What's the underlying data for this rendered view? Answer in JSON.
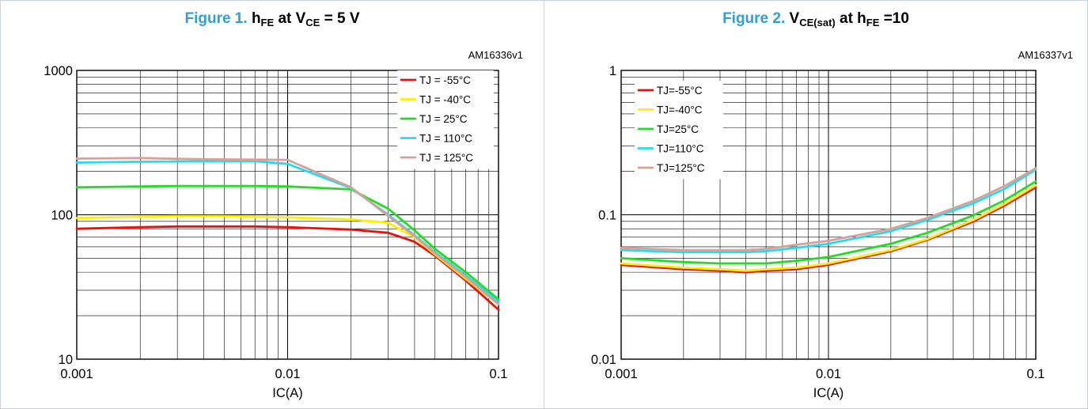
{
  "charts": [
    {
      "id": "fig1",
      "figure_label": "Figure 1.",
      "title_parts": [
        {
          "t": "h"
        },
        {
          "t": "FE",
          "sub": true
        },
        {
          "t": " at V"
        },
        {
          "t": "CE",
          "sub": true
        },
        {
          "t": " = 5 V"
        }
      ],
      "code": "AM16336v1"
    },
    {
      "id": "fig2",
      "figure_label": "Figure 2.",
      "title_parts": [
        {
          "t": "V"
        },
        {
          "t": "CE(sat)",
          "sub": true
        },
        {
          "t": " at h"
        },
        {
          "t": "FE",
          "sub": true
        },
        {
          "t": " =10"
        }
      ],
      "code": "AM16337v1"
    }
  ],
  "chart_data": [
    {
      "type": "line",
      "title": "Figure 1. hFE at VCE = 5 V",
      "xlabel": "IC(A)",
      "ylabel": "",
      "xscale": "log",
      "yscale": "log",
      "xlim": [
        0.001,
        0.1
      ],
      "ylim": [
        10,
        1000
      ],
      "x_ticks": [
        "0.001",
        "0.01",
        "0.1"
      ],
      "y_ticks": [
        "10",
        "100",
        "1000"
      ],
      "grid": true,
      "legend_position": "top-right",
      "series": [
        {
          "name": "TJ = -55°C",
          "color": "#e8110f",
          "x": [
            0.001,
            0.002,
            0.003,
            0.005,
            0.007,
            0.01,
            0.02,
            0.03,
            0.04,
            0.05,
            0.07,
            0.1
          ],
          "y": [
            80,
            82,
            83,
            83,
            83,
            82,
            79,
            75,
            65,
            52,
            35,
            22
          ]
        },
        {
          "name": "TJ = -40°C",
          "color": "#ffee00",
          "x": [
            0.001,
            0.002,
            0.003,
            0.005,
            0.007,
            0.01,
            0.02,
            0.03,
            0.04,
            0.05,
            0.07,
            0.1
          ],
          "y": [
            95,
            97,
            98,
            98,
            97,
            96,
            93,
            88,
            70,
            53,
            36,
            24
          ]
        },
        {
          "name": "TJ = 25°C",
          "color": "#22dd22",
          "x": [
            0.001,
            0.002,
            0.003,
            0.005,
            0.007,
            0.01,
            0.02,
            0.03,
            0.04,
            0.05,
            0.07,
            0.1
          ],
          "y": [
            155,
            157,
            158,
            158,
            158,
            157,
            150,
            110,
            78,
            58,
            40,
            26
          ]
        },
        {
          "name": "TJ = 110°C",
          "color": "#22ddee",
          "x": [
            0.001,
            0.002,
            0.003,
            0.005,
            0.007,
            0.01,
            0.02,
            0.03,
            0.04,
            0.05,
            0.07,
            0.1
          ],
          "y": [
            230,
            233,
            234,
            235,
            235,
            225,
            153,
            100,
            72,
            55,
            38,
            25
          ]
        },
        {
          "name": "TJ = 125°C",
          "color": "#d9a09a",
          "x": [
            0.001,
            0.002,
            0.003,
            0.005,
            0.007,
            0.01,
            0.02,
            0.03,
            0.04,
            0.05,
            0.07,
            0.1
          ],
          "y": [
            245,
            247,
            244,
            242,
            241,
            240,
            155,
            98,
            71,
            54,
            37,
            24
          ]
        }
      ]
    },
    {
      "type": "line",
      "title": "Figure 2. VCE(sat) at hFE =10",
      "xlabel": "IC(A)",
      "ylabel": "",
      "xscale": "log",
      "yscale": "log",
      "xlim": [
        0.001,
        0.1
      ],
      "ylim": [
        0.01,
        1
      ],
      "x_ticks": [
        "0.001",
        "0.01",
        "0.1"
      ],
      "y_ticks": [
        "0.01",
        "0.1",
        "1"
      ],
      "grid": true,
      "legend_position": "top-left",
      "series": [
        {
          "name": "TJ=-55°C",
          "color": "#e8110f",
          "x": [
            0.001,
            0.002,
            0.003,
            0.004,
            0.005,
            0.007,
            0.01,
            0.02,
            0.03,
            0.05,
            0.07,
            0.1
          ],
          "y": [
            0.045,
            0.042,
            0.041,
            0.04,
            0.041,
            0.042,
            0.045,
            0.056,
            0.067,
            0.09,
            0.115,
            0.155
          ]
        },
        {
          "name": "TJ=-40°C",
          "color": "#ffee00",
          "x": [
            0.001,
            0.002,
            0.003,
            0.004,
            0.005,
            0.007,
            0.01,
            0.02,
            0.03,
            0.05,
            0.07,
            0.1
          ],
          "y": [
            0.046,
            0.043,
            0.042,
            0.041,
            0.042,
            0.043,
            0.046,
            0.057,
            0.068,
            0.092,
            0.118,
            0.16
          ]
        },
        {
          "name": "TJ=25°C",
          "color": "#22dd22",
          "x": [
            0.001,
            0.002,
            0.003,
            0.004,
            0.005,
            0.007,
            0.01,
            0.02,
            0.03,
            0.05,
            0.07,
            0.1
          ],
          "y": [
            0.05,
            0.047,
            0.046,
            0.046,
            0.046,
            0.048,
            0.051,
            0.063,
            0.075,
            0.099,
            0.125,
            0.17
          ]
        },
        {
          "name": "TJ=110°C",
          "color": "#22ddee",
          "x": [
            0.001,
            0.002,
            0.003,
            0.004,
            0.005,
            0.007,
            0.01,
            0.02,
            0.03,
            0.05,
            0.07,
            0.1
          ],
          "y": [
            0.057,
            0.055,
            0.055,
            0.055,
            0.056,
            0.059,
            0.063,
            0.077,
            0.092,
            0.12,
            0.15,
            0.205
          ]
        },
        {
          "name": "TJ=125°C",
          "color": "#d9a09a",
          "x": [
            0.001,
            0.002,
            0.003,
            0.004,
            0.005,
            0.007,
            0.01,
            0.02,
            0.03,
            0.05,
            0.07,
            0.1
          ],
          "y": [
            0.059,
            0.057,
            0.057,
            0.057,
            0.058,
            0.062,
            0.066,
            0.08,
            0.095,
            0.125,
            0.157,
            0.21
          ]
        }
      ]
    }
  ]
}
